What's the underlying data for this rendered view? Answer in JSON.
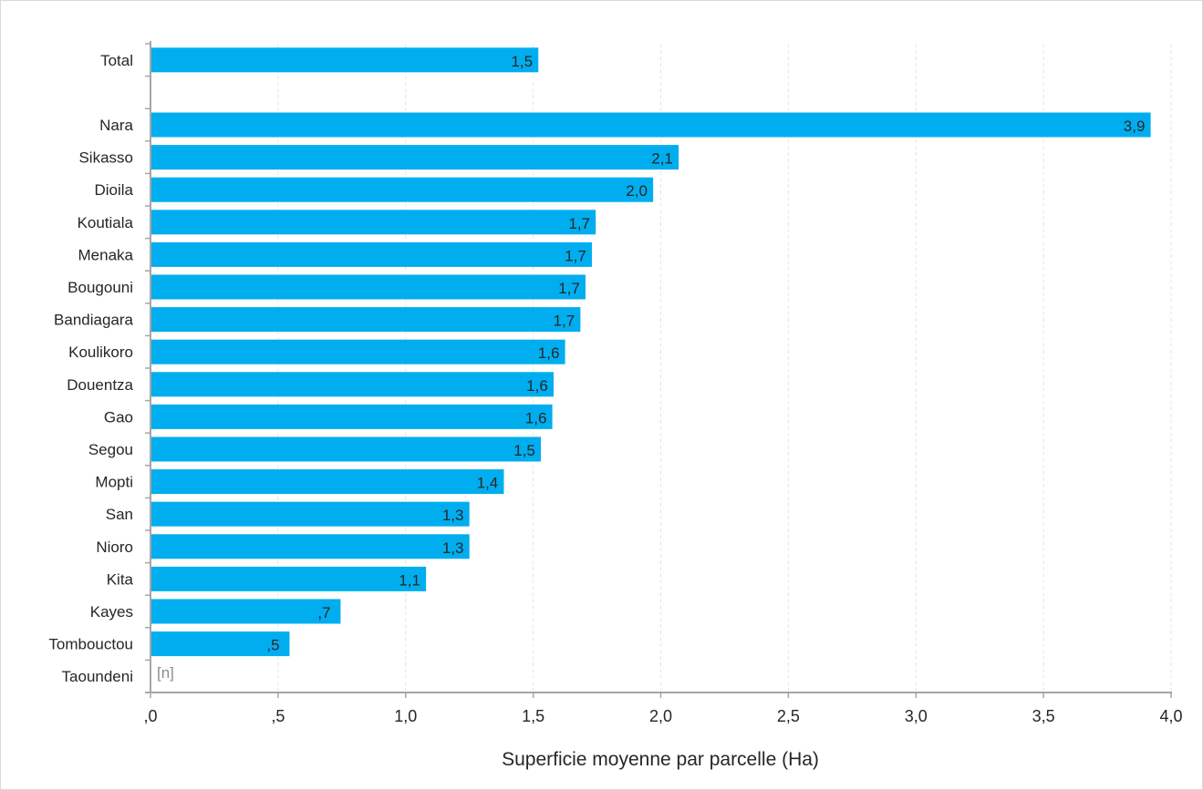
{
  "chart_data": {
    "type": "bar",
    "orientation": "horizontal",
    "categories": [
      "Total",
      "",
      "Nara",
      "Sikasso",
      "Dioila",
      "Koutiala",
      "Menaka",
      "Bougouni",
      "Bandiagara",
      "Koulikoro",
      "Douentza",
      "Gao",
      "Segou",
      "Mopti",
      "San",
      "Nioro",
      "Kita",
      "Kayes",
      "Tombouctou",
      "Taoundeni"
    ],
    "values": [
      1.52,
      null,
      3.92,
      2.07,
      1.97,
      1.745,
      1.73,
      1.705,
      1.685,
      1.625,
      1.58,
      1.575,
      1.53,
      1.385,
      1.25,
      1.25,
      1.08,
      0.745,
      0.545,
      null
    ],
    "value_labels": [
      "1,5",
      "",
      "3,9",
      "2,1",
      "2,0",
      "1,7",
      "1,7",
      "1,7",
      "1,7",
      "1,6",
      "1,6",
      "1,6",
      "1,5",
      "1,4",
      "1,3",
      "1,3",
      "1,1",
      ",7",
      ",5",
      "[n]"
    ],
    "xlabel": "Superficie moyenne par parcelle (Ha)",
    "ylabel": "",
    "xlim": [
      0,
      4.0
    ],
    "xticks": [
      0,
      0.5,
      1.0,
      1.5,
      2.0,
      2.5,
      3.0,
      3.5,
      4.0
    ],
    "xtick_labels": [
      ",0",
      ",5",
      "1,0",
      "1,5",
      "2,0",
      "2,5",
      "3,0",
      "3,5",
      "4,0"
    ],
    "grid": "vertical dashed",
    "bar_color": "#00aeef",
    "gridline_color": "#e6e6e6",
    "axis_color": "#a6a6a6"
  }
}
